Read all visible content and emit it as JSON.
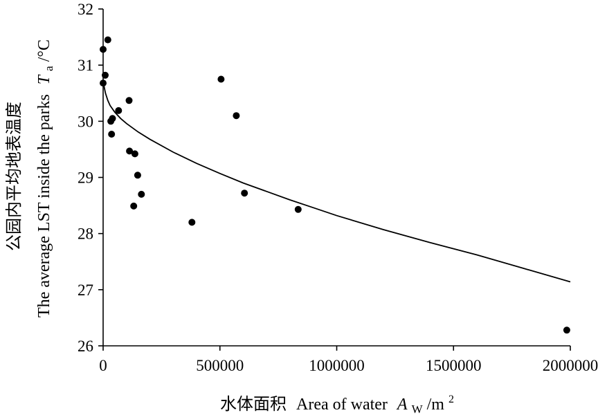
{
  "chart_data": {
    "type": "scatter",
    "xlabel": {
      "zh": "水体面积",
      "en": "Area of water",
      "symbol": "A",
      "sub": "W",
      "unit_prefix": "/m",
      "unit_sup": "2"
    },
    "ylabel": {
      "zh": "公园内平均地表温度",
      "en": "The average LST inside the parks",
      "symbol": "T",
      "sub": "a",
      "unit": "/°C"
    },
    "xlim": [
      0,
      2000000
    ],
    "ylim": [
      26,
      32
    ],
    "xticks": [
      0,
      500000,
      1000000,
      1500000,
      2000000
    ],
    "xtick_labels": [
      "0",
      "500000",
      "1000000",
      "1500000",
      "2000000"
    ],
    "yticks": [
      26,
      27,
      28,
      29,
      30,
      31,
      32
    ],
    "ytick_labels": [
      "26",
      "27",
      "28",
      "29",
      "30",
      "31",
      "32"
    ],
    "grid": false,
    "points": [
      {
        "x": 0,
        "y": 31.28
      },
      {
        "x": 0,
        "y": 30.68
      },
      {
        "x": 9000,
        "y": 30.82
      },
      {
        "x": 20000,
        "y": 31.45
      },
      {
        "x": 33000,
        "y": 30.0
      },
      {
        "x": 36000,
        "y": 29.77
      },
      {
        "x": 40000,
        "y": 30.05
      },
      {
        "x": 66000,
        "y": 30.19
      },
      {
        "x": 111000,
        "y": 30.37
      },
      {
        "x": 113000,
        "y": 29.47
      },
      {
        "x": 131000,
        "y": 28.49
      },
      {
        "x": 136000,
        "y": 29.42
      },
      {
        "x": 148000,
        "y": 29.04
      },
      {
        "x": 164000,
        "y": 28.7
      },
      {
        "x": 380000,
        "y": 28.2
      },
      {
        "x": 505000,
        "y": 30.75
      },
      {
        "x": 570000,
        "y": 30.1
      },
      {
        "x": 605000,
        "y": 28.72
      },
      {
        "x": 835000,
        "y": 28.43
      },
      {
        "x": 1985000,
        "y": 26.28
      }
    ],
    "trend": {
      "type": "fit-curve",
      "x": [
        1000,
        5000,
        10000,
        20000,
        30000,
        50000,
        75000,
        100000,
        150000,
        200000,
        300000,
        400000,
        500000,
        600000,
        700000,
        800000,
        900000,
        1000000,
        1200000,
        1400000,
        1600000,
        1800000,
        2000000
      ],
      "y": [
        30.72,
        30.6,
        30.5,
        30.37,
        30.28,
        30.16,
        30.05,
        29.96,
        29.81,
        29.68,
        29.45,
        29.25,
        29.07,
        28.9,
        28.75,
        28.6,
        28.46,
        28.32,
        28.07,
        27.84,
        27.62,
        27.38,
        27.14
      ]
    }
  }
}
